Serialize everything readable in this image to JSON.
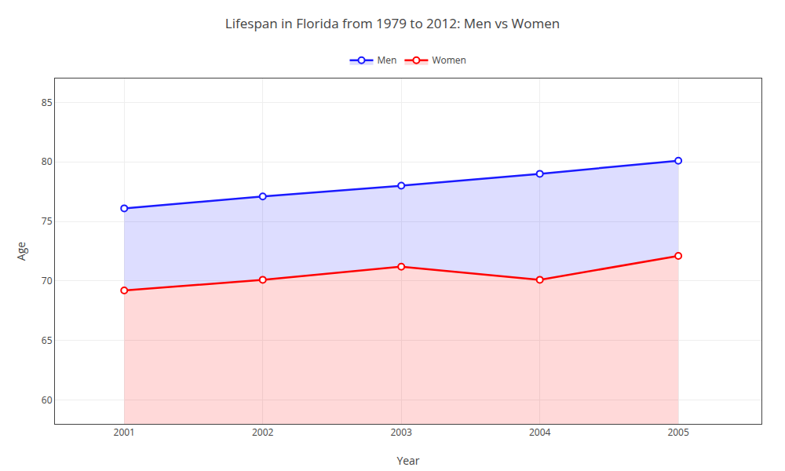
{
  "chart_data": {
    "type": "line",
    "title": "Lifespan in Florida from 1979 to 2012: Men vs Women",
    "xlabel": "Year",
    "ylabel": "Age",
    "x": [
      2001,
      2002,
      2003,
      2004,
      2005
    ],
    "series": [
      {
        "name": "Men",
        "color": "#1a1aff",
        "values": [
          76.1,
          77.1,
          78.0,
          79.0,
          80.1
        ]
      },
      {
        "name": "Women",
        "color": "#ff0000",
        "values": [
          69.2,
          70.1,
          71.2,
          70.1,
          72.1
        ]
      }
    ],
    "xlim": [
      2000.5,
      2005.6
    ],
    "xticks": [
      2001,
      2002,
      2003,
      2004,
      2005
    ],
    "ylim": [
      58,
      87
    ],
    "yticks": [
      60,
      65,
      70,
      75,
      80,
      85
    ],
    "marker": "circle",
    "grid": true,
    "legend": "top"
  }
}
